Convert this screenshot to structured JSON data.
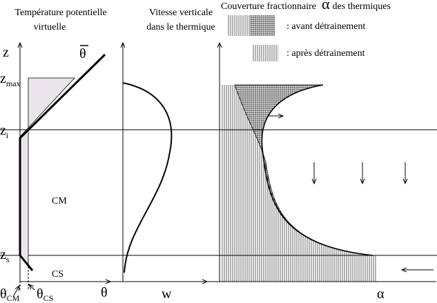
{
  "left_panel": {
    "title_line1": "Température potentielle",
    "title_line2": "virtuelle",
    "y_axis": "z",
    "profile_label": "θ",
    "x_axis": "θ",
    "z_max": {
      "main": "z",
      "sub": "max"
    },
    "z_i": {
      "main": "z",
      "sub": "i"
    },
    "z_s": {
      "main": "z",
      "sub": "s"
    },
    "layer_mixed": "CM",
    "layer_surface": "CS",
    "theta_cm": {
      "main": "θ",
      "sub": "CM"
    },
    "theta_cs": {
      "main": "θ",
      "sub": "CS"
    }
  },
  "middle_panel": {
    "title_line1": "Vitesse verticale",
    "title_line2": "dans le thermique",
    "x_axis": "w"
  },
  "right_panel": {
    "title_start": "Couverture fractionnaire",
    "title_symbol": "α",
    "title_end": "des thermiques",
    "legend_before": ":  avant détrainement",
    "legend_after": ":  après détrainement",
    "x_axis": "α"
  }
}
